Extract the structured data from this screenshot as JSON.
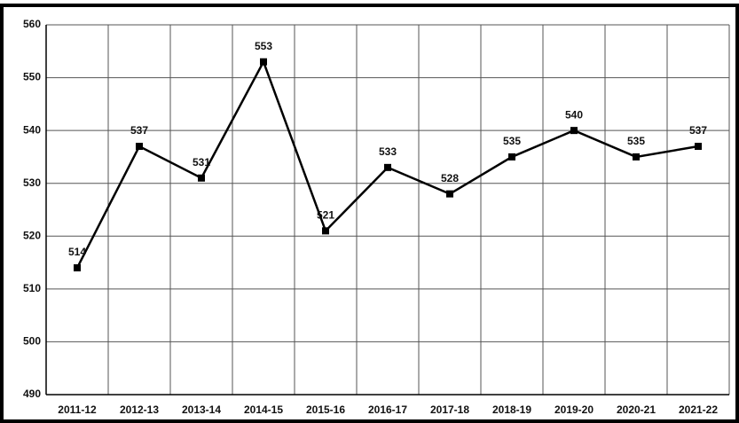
{
  "chart_data": {
    "type": "line",
    "categories": [
      "2011-12",
      "2012-13",
      "2013-14",
      "2014-15",
      "2015-16",
      "2016-17",
      "2017-18",
      "2018-19",
      "2019-20",
      "2020-21",
      "2021-22"
    ],
    "values": [
      514,
      537,
      531,
      553,
      521,
      533,
      528,
      535,
      540,
      535,
      537
    ],
    "color": "#000000",
    "ylim": [
      490,
      560
    ],
    "yticks": [
      490,
      500,
      510,
      520,
      530,
      540,
      550,
      560
    ],
    "grid": true
  }
}
